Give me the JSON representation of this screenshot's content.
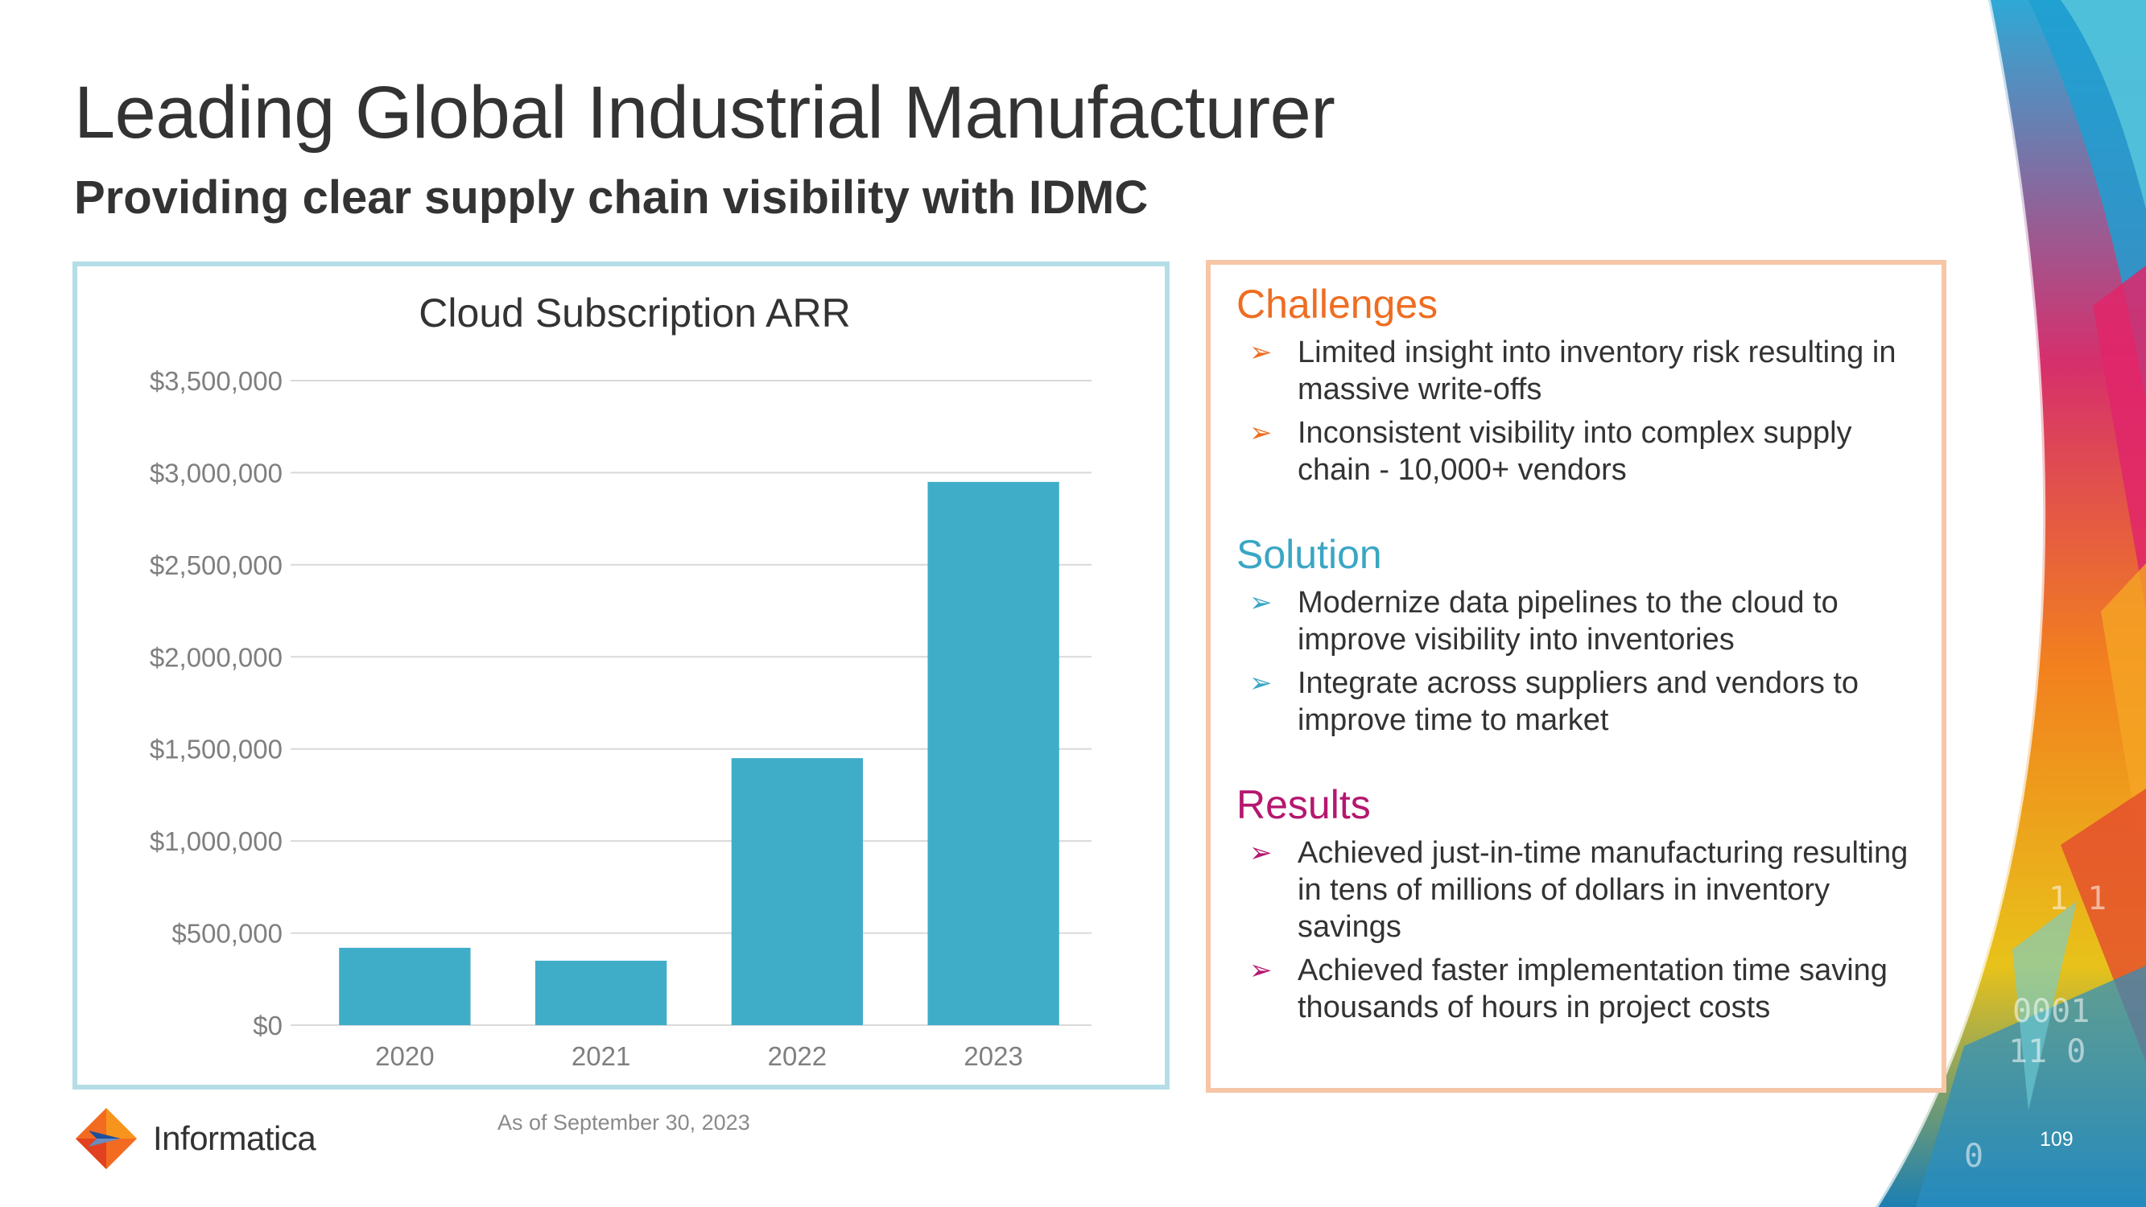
{
  "title": "Leading Global Industrial Manufacturer",
  "subtitle": "Providing clear supply chain visibility with IDMC",
  "chart_data": {
    "type": "bar",
    "title": "Cloud Subscription ARR",
    "categories": [
      "2020",
      "2021",
      "2022",
      "2023"
    ],
    "values": [
      420000,
      350000,
      1450000,
      2950000
    ],
    "ylim": [
      0,
      3500000
    ],
    "yticks": [
      0,
      500000,
      1000000,
      1500000,
      2000000,
      2500000,
      3000000,
      3500000
    ],
    "ytick_labels": [
      "$0",
      "$500,000",
      "$1,000,000",
      "$1,500,000",
      "$2,000,000",
      "$2,500,000",
      "$3,000,000",
      "$3,500,000"
    ],
    "xlabel": "",
    "ylabel": "",
    "grid": true,
    "legend": "none",
    "bar_color": "#3fadc8"
  },
  "footnote": "As of September 30, 2023",
  "sections": {
    "challenges": {
      "heading": "Challenges",
      "color": "#ee6d22",
      "bullets": [
        "Limited insight into inventory risk resulting in massive write-offs",
        "Inconsistent visibility into complex supply chain - 10,000+ vendors"
      ]
    },
    "solution": {
      "heading": "Solution",
      "color": "#3aa6c4",
      "bullets": [
        "Modernize data pipelines to the cloud to improve visibility into inventories",
        "Integrate across suppliers and vendors to improve time to market"
      ]
    },
    "results": {
      "heading": "Results",
      "color": "#b5176f",
      "bullets": [
        "Achieved just-in-time manufacturing resulting in tens of millions of dollars in inventory savings",
        "Achieved faster implementation time saving thousands of hours in project costs"
      ]
    }
  },
  "logo": {
    "text": "Informatica",
    "icon": "informatica-logo-icon"
  },
  "page_number": "109",
  "colors": {
    "chart_border": "#b5dde6",
    "info_border": "#f7c6a6",
    "text": "#333333"
  }
}
